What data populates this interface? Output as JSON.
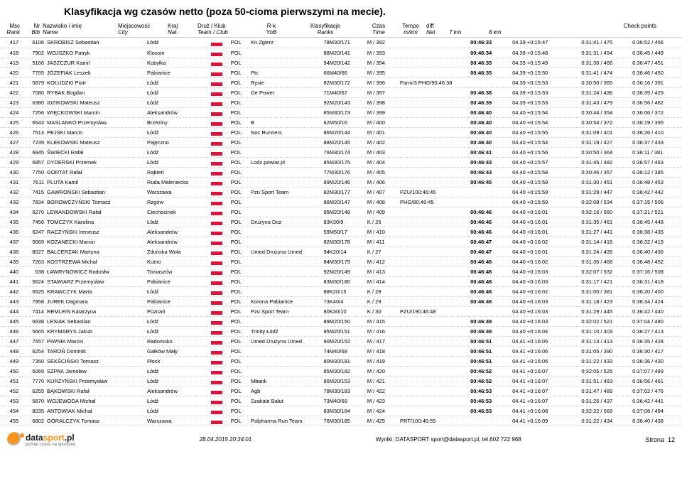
{
  "title": "Klasyfikacja wg czasów netto (poza 50-cioma pierwszymi na mecie).",
  "headers": {
    "msc": "Msc",
    "rank": "Rank",
    "nr": "Nr",
    "bib": "Bib",
    "nazw": "Nazwisko i imię",
    "name": "Name",
    "miejsc": "Miejscowość",
    "city": "City",
    "kraj": "Kraj",
    "nat": "Nat.",
    "druz": "Druż / Klub",
    "team": "Team / Club",
    "rk": "R-k",
    "yob": "YoB",
    "klas": "Klasyfikacje",
    "ranks": "Ranks",
    "czas": "Czas",
    "time": "Time",
    "tempo": "Tempo",
    "mkm": "m/km",
    "diff": "diff",
    "net": "Net",
    "check": "Check points",
    "cp7": "7 km",
    "cp8": "8 km"
  },
  "footer": {
    "brand_d": "data",
    "brand_s": "sport",
    "brand_tld": ".pl",
    "tag": "pomiar czasu na sportowo",
    "ts": "28.04.2015 20:34:01",
    "mid": "Wyniki: DATASPORT sport@datasport.pl, tel.602 722 968",
    "page_lbl": "Strona",
    "page": "12"
  },
  "rows": [
    {
      "rank": "417",
      "bib": "6106",
      "name": "SKROBISZ Sebastian",
      "city": "Łódź",
      "nat": "POL",
      "club": "Kn Zgierz",
      "yob": "78M30/171",
      "cat": "M / 392",
      "cls": "",
      "time": "00:46:33",
      "tempo": "04.39 +0:15:47",
      "cp7": "0:31:41 / 475",
      "cp8": "0:36:52 / 456"
    },
    {
      "rank": "418",
      "bib": "7902",
      "name": "WOJSZKO Patryk",
      "city": "Kloosin",
      "nat": "POL",
      "club": "",
      "yob": "88M20/141",
      "cat": "M / 393",
      "cls": "",
      "time": "00:46:34",
      "tempo": "04.39 +0:15:48",
      "cp7": "0:31:31 / 454",
      "cp8": "0:36:45 / 449"
    },
    {
      "rank": "419",
      "bib": "5166",
      "name": "JASZCZUR Kamil",
      "city": "Kobyłka",
      "nat": "POL",
      "club": "",
      "yob": "94M20/142",
      "cat": "M / 394",
      "cls": "",
      "time": "00:46:35",
      "tempo": "04.39 +0:15:49",
      "cp7": "0:31:36 / 466",
      "cp8": "0:36:47 / 451"
    },
    {
      "rank": "420",
      "bib": "7755",
      "name": "JÓZEFIAK Leszek",
      "city": "Pabianice",
      "nat": "POL",
      "club": "Ptc",
      "yob": "66M40/66",
      "cat": "M / 395",
      "cls": "",
      "time": "00:46:35",
      "tempo": "04.39 +0:15:50",
      "cp7": "0:31:41 / 474",
      "cp8": "0:36:46 / 450"
    },
    {
      "rank": "421",
      "bib": "5879",
      "name": "KOŁUDZKI Piotr",
      "city": "Łódź",
      "nat": "POL",
      "club": "Rysie",
      "yob": "82M30/172",
      "cat": "M / 396",
      "cls": "Farm/3 PHG/90:46:38",
      "time": "",
      "tempo": "04.39 +0:15:53",
      "cp7": "0:30:50 / 365",
      "cp8": "0:36:16 / 391"
    },
    {
      "rank": "422",
      "bib": "7080",
      "name": "RYBAK Bogdan",
      "city": "Łódź",
      "nat": "POL",
      "club": "Ge Power",
      "yob": "71M40/67",
      "cat": "M / 397",
      "cls": "",
      "time": "00:46:38",
      "tempo": "04.39 +0:15:53",
      "cp7": "0:31:24 / 436",
      "cp8": "0:36:35 / 429"
    },
    {
      "rank": "423",
      "bib": "6380",
      "name": "IDZIKOWSKI Mateusz",
      "city": "Łódź",
      "nat": "POL",
      "club": "",
      "yob": "92M20/143",
      "cat": "M / 398",
      "cls": "",
      "time": "00:46:39",
      "tempo": "04.39 +0:15:53",
      "cp7": "0:31:43 / 479",
      "cp8": "0:36:56 / 462"
    },
    {
      "rank": "424",
      "bib": "7256",
      "name": "WIĘCKOWSKI Marcin",
      "city": "Aleksandrów",
      "nat": "POL",
      "club": "",
      "yob": "85M30/173",
      "cat": "M / 399",
      "cls": "",
      "time": "00:46:40",
      "tempo": "04.40 +0:15:54",
      "cp7": "0:30:44 / 354",
      "cp8": "0:36:06 / 372"
    },
    {
      "rank": "425",
      "bib": "6543",
      "name": "MASLANKO Przemysław",
      "city": "Brzeziny",
      "nat": "POL",
      "club": "B",
      "yob": "62M50/16",
      "cat": "M / 400",
      "cls": "",
      "time": "00:46:40",
      "tempo": "04.40 +0:15:54",
      "cp7": "0:30:54 / 372",
      "cp8": "0:36:19 / 395"
    },
    {
      "rank": "426",
      "bib": "7513",
      "name": "PEJSKI Marcin",
      "city": "Łódź",
      "nat": "POL",
      "club": "Noc Runners",
      "yob": "86M20/144",
      "cat": "M / 401",
      "cls": "",
      "time": "00:46:40",
      "tempo": "04.40 +0:15:55",
      "cp7": "0:31:09 / 401",
      "cp8": "0:36:26 / 410"
    },
    {
      "rank": "427",
      "bib": "7239",
      "name": "KLEKOWSKI Mateusz",
      "city": "Pajęczno",
      "nat": "POL",
      "club": "",
      "yob": "88M20/145",
      "cat": "M / 402",
      "cls": "",
      "time": "00:46:40",
      "tempo": "04.40 +0:15:54",
      "cp7": "0:31:19 / 427",
      "cp8": "0:36:37 / 433"
    },
    {
      "rank": "428",
      "bib": "6945",
      "name": "ŚWIECKI Rafał",
      "city": "Łódź",
      "nat": "POL",
      "club": "",
      "yob": "76M30/174",
      "cat": "M / 403",
      "cls": "",
      "time": "00:46:41",
      "tempo": "04.40 +0:15:56",
      "cp7": "0:30:50 / 364",
      "cp8": "0:36:11 / 381"
    },
    {
      "rank": "429",
      "bib": "6957",
      "name": "DYDERSKI Przemek",
      "city": "Łódź",
      "nat": "POL",
      "club": "Lodz.powiat.pl",
      "yob": "85M30/175",
      "cat": "M / 404",
      "cls": "",
      "time": "00:46:43",
      "tempo": "04.40 +0:15:57",
      "cp7": "0:31:45 / 482",
      "cp8": "0:36:57 / 463"
    },
    {
      "rank": "430",
      "bib": "7750",
      "name": "GORTAT Rafał",
      "city": "Rąbień",
      "nat": "POL",
      "club": "",
      "yob": "77M30/176",
      "cat": "M / 405",
      "cls": "",
      "time": "00:46:43",
      "tempo": "04.40 +0:15:58",
      "cp7": "0:30:46 / 357",
      "cp8": "0:36:12 / 385"
    },
    {
      "rank": "431",
      "bib": "7611",
      "name": "PLUTA Kamil",
      "city": "Ruda Maleniecka",
      "nat": "POL",
      "club": "",
      "yob": "89M20/146",
      "cat": "M / 406",
      "cls": "",
      "time": "00:46:45",
      "tempo": "04.40 +0:15:59",
      "cp7": "0:31:30 / 451",
      "cp8": "0:36:48 / 453"
    },
    {
      "rank": "432",
      "bib": "7415",
      "name": "GAWROŃSKI Sebastian",
      "city": "Warszawa",
      "nat": "POL",
      "club": "Pzu Sport Team",
      "yob": "82M30/177",
      "cat": "M / 407",
      "cls": "PZU/100:46:45",
      "time": "",
      "tempo": "04.40 +0:15:59",
      "cp7": "0:31:29 / 447",
      "cp8": "0:36:42 / 442"
    },
    {
      "rank": "433",
      "bib": "7834",
      "name": "BOROWCZYŃSKI Tomasz",
      "city": "Rzgów",
      "nat": "POL",
      "club": "",
      "yob": "86M20/147",
      "cat": "M / 408",
      "cls": "PHG/80:46:45",
      "time": "",
      "tempo": "04.40 +0:15:59",
      "cp7": "0:32:08 / 534",
      "cp8": "0:37:15 / 506"
    },
    {
      "rank": "434",
      "bib": "6270",
      "name": "LEWANDOWSKI Rafał",
      "city": "Ciechocinek",
      "nat": "POL",
      "club": "",
      "yob": "95M20/148",
      "cat": "M / 409",
      "cls": "",
      "time": "00:46:46",
      "tempo": "04.40 +0:16:01",
      "cp7": "0:32:16 / 560",
      "cp8": "0:37:21 / 521"
    },
    {
      "rank": "435",
      "bib": "7456",
      "name": "TOMCZYK Karolina",
      "city": "Łódź",
      "nat": "POL",
      "club": "Drużyna Doz",
      "yob": "83K30/9",
      "cat": "K / 26",
      "cls": "",
      "time": "00:46:46",
      "tempo": "04.40 +0:16:01",
      "cp7": "0:31:35 / 461",
      "cp8": "0:36:45 / 448"
    },
    {
      "rank": "436",
      "bib": "6247",
      "name": "RACZYŃSKI Ireneusz",
      "city": "Aleksandrów",
      "nat": "POL",
      "club": "",
      "yob": "59M50/17",
      "cat": "M / 410",
      "cls": "",
      "time": "00:46:46",
      "tempo": "04.40 +0:16:01",
      "cp7": "0:31:27 / 441",
      "cp8": "0:36:38 / 435"
    },
    {
      "rank": "437",
      "bib": "5669",
      "name": "KOZANECKI Marcin",
      "city": "Aleksandrów",
      "nat": "POL",
      "club": "",
      "yob": "82M30/178",
      "cat": "M / 411",
      "cls": "",
      "time": "00:46:47",
      "tempo": "04.40 +0:16:02",
      "cp7": "0:31:14 / 416",
      "cp8": "0:36:32 / 419"
    },
    {
      "rank": "438",
      "bib": "8027",
      "name": "BALCERZAK Martyna",
      "city": "Zduńska Wola",
      "nat": "POL",
      "club": "Umed Drużyna Umed",
      "yob": "94K20/14",
      "cat": "K / 27",
      "cls": "",
      "time": "00:46:47",
      "tempo": "04.40 +0:16:01",
      "cp7": "0:31:24 / 435",
      "cp8": "0:36:40 / 436"
    },
    {
      "rank": "439",
      "bib": "7263",
      "name": "KOSTRZEWA Michał",
      "city": "Kutno",
      "nat": "POL",
      "club": "",
      "yob": "84M30/179",
      "cat": "M / 412",
      "cls": "",
      "time": "00:46:48",
      "tempo": "04.40 +0:16:02",
      "cp7": "0:31:36 / 468",
      "cp8": "0:36:48 / 452"
    },
    {
      "rank": "440",
      "bib": "638",
      "name": "ŁAWRYNOWICZ Radosłw",
      "city": "Tomaszów",
      "nat": "POL",
      "club": "",
      "yob": "92M20/149",
      "cat": "M / 413",
      "cls": "",
      "time": "00:46:48",
      "tempo": "04.40 +0:16:03",
      "cp7": "0:32:07 / 532",
      "cp8": "0:37:16 / 508"
    },
    {
      "rank": "441",
      "bib": "5624",
      "name": "STAWIARZ Przemysław",
      "city": "Pabianice",
      "nat": "POL",
      "club": "",
      "yob": "83M30/180",
      "cat": "M / 414",
      "cls": "",
      "time": "00:46:48",
      "tempo": "04.40 +0:16:03",
      "cp7": "0:31:17 / 421",
      "cp8": "0:36:31 / 418"
    },
    {
      "rank": "442",
      "bib": "6525",
      "name": "KRAWCZYK Marta",
      "city": "Łódź",
      "nat": "POL",
      "club": "",
      "yob": "88K20/15",
      "cat": "K / 28",
      "cls": "",
      "time": "00:46:48",
      "tempo": "04.40 +0:16:02",
      "cp7": "0:31:00 / 381",
      "cp8": "0:36:20 / 400"
    },
    {
      "rank": "443",
      "bib": "7958",
      "name": "JUREK Dagmara",
      "city": "Pabianice",
      "nat": "POL",
      "club": "Korona Pabianice",
      "yob": "73K40/4",
      "cat": "K / 29",
      "cls": "",
      "time": "00:46:48",
      "tempo": "04.40 +0:16:03",
      "cp7": "0:31:18 / 423",
      "cp8": "0:36:34 / 424"
    },
    {
      "rank": "444",
      "bib": "7414",
      "name": "REMLEIN Katarzyna",
      "city": "Poznań",
      "nat": "POL",
      "club": "Pzu Sport Team",
      "yob": "80K30/10",
      "cat": "K / 30",
      "cls": "PZU/190:46:48",
      "time": "",
      "tempo": "04.40 +0:16:03",
      "cp7": "0:31:29 / 445",
      "cp8": "0:36:42 / 440"
    },
    {
      "rank": "445",
      "bib": "6638",
      "name": "LESIAK Sebastian",
      "city": "Łódź",
      "nat": "POL",
      "club": "",
      "yob": "89M20/150",
      "cat": "M / 415",
      "cls": "",
      "time": "00:46:49",
      "tempo": "04.40 +0:16:03",
      "cp7": "0:32:02 / 521",
      "cp8": "0:37:04 / 480"
    },
    {
      "rank": "446",
      "bib": "5665",
      "name": "KRYMARYS Jakub",
      "city": "Łódź",
      "nat": "POL",
      "club": "Trinity Łódź",
      "yob": "95M20/151",
      "cat": "M / 416",
      "cls": "",
      "time": "00:46:49",
      "tempo": "04.40 +0:16:04",
      "cp7": "0:31:10 / 403",
      "cp8": "0:36:27 / 413"
    },
    {
      "rank": "447",
      "bib": "7557",
      "name": "PIWNIK Marcin",
      "city": "Radomsko",
      "nat": "POL",
      "club": "Umed Drużyna Umed",
      "yob": "90M20/152",
      "cat": "M / 417",
      "cls": "",
      "time": "00:46:51",
      "tempo": "04.41 +0:16:05",
      "cp7": "0:31:13 / 413",
      "cp8": "0:36:35 / 428"
    },
    {
      "rank": "448",
      "bib": "6254",
      "name": "TAROŃ Dominik",
      "city": "Gałków Mały",
      "nat": "POL",
      "club": "",
      "yob": "74M40/68",
      "cat": "M / 418",
      "cls": "",
      "time": "00:46:51",
      "tempo": "04.41 +0:16:06",
      "cp7": "0:31:05 / 390",
      "cp8": "0:36:30 / 417"
    },
    {
      "rank": "449",
      "bib": "7350",
      "name": "SEKŚCIŃSKI Tomasz",
      "city": "Płock",
      "nat": "POL",
      "club": "",
      "yob": "80M30/181",
      "cat": "M / 419",
      "cls": "",
      "time": "00:46:51",
      "tempo": "04.41 +0:16:05",
      "cp7": "0:31:22 / 433",
      "cp8": "0:36:36 / 430"
    },
    {
      "rank": "450",
      "bib": "6069",
      "name": "SZPAK Jarosław",
      "city": "Łódź",
      "nat": "POL",
      "club": "",
      "yob": "85M30/182",
      "cat": "M / 420",
      "cls": "",
      "time": "00:46:52",
      "tempo": "04.41 +0:16:07",
      "cp7": "0:32:05 / 525",
      "cp8": "0:37:07 / 489"
    },
    {
      "rank": "451",
      "bib": "7770",
      "name": "KURZYŃSKI Przemysław",
      "city": "Łódź",
      "nat": "POL",
      "club": "Mbank",
      "yob": "86M20/153",
      "cat": "M / 421",
      "cls": "",
      "time": "00:46:52",
      "tempo": "04.41 +0:16:07",
      "cp7": "0:31:51 / 493",
      "cp8": "0:36:56 / 461"
    },
    {
      "rank": "452",
      "bib": "6255",
      "name": "BĄKOWSKI Rafał",
      "city": "Aleksandrów",
      "nat": "POL",
      "club": "Agb",
      "yob": "78M30/183",
      "cat": "M / 422",
      "cls": "",
      "time": "00:46:53",
      "tempo": "04.41 +0:16:07",
      "cp7": "0:31:47 / 489",
      "cp8": "0:37:02 / 476"
    },
    {
      "rank": "453",
      "bib": "5870",
      "name": "WOJEWODA Michał",
      "city": "Łódź",
      "nat": "POL",
      "club": "Szakale Bałut",
      "yob": "73M40/69",
      "cat": "M / 423",
      "cls": "",
      "time": "00:46:53",
      "tempo": "04.41 +0:16:07",
      "cp7": "0:31:25 / 437",
      "cp8": "0:36:42 / 441"
    },
    {
      "rank": "454",
      "bib": "8235",
      "name": "ANTOWIAK Michał",
      "city": "Łódź",
      "nat": "POL",
      "club": "",
      "yob": "83M30/184",
      "cat": "M / 424",
      "cls": "",
      "time": "00:46:53",
      "tempo": "04.41 +0:16:08",
      "cp7": "0:32:22 / 569",
      "cp8": "0:37:08 / 494"
    },
    {
      "rank": "455",
      "bib": "6802",
      "name": "GÓRALCZYK Tomasz",
      "city": "Warszawa",
      "nat": "POL",
      "club": "Polpharma Run Team",
      "yob": "76M30/185",
      "cat": "M / 425",
      "cls": "PRT/100:46:55",
      "time": "",
      "tempo": "04.41 +0:16:09",
      "cp7": "0:31:22 / 434",
      "cp8": "0:36:40 / 438"
    }
  ]
}
